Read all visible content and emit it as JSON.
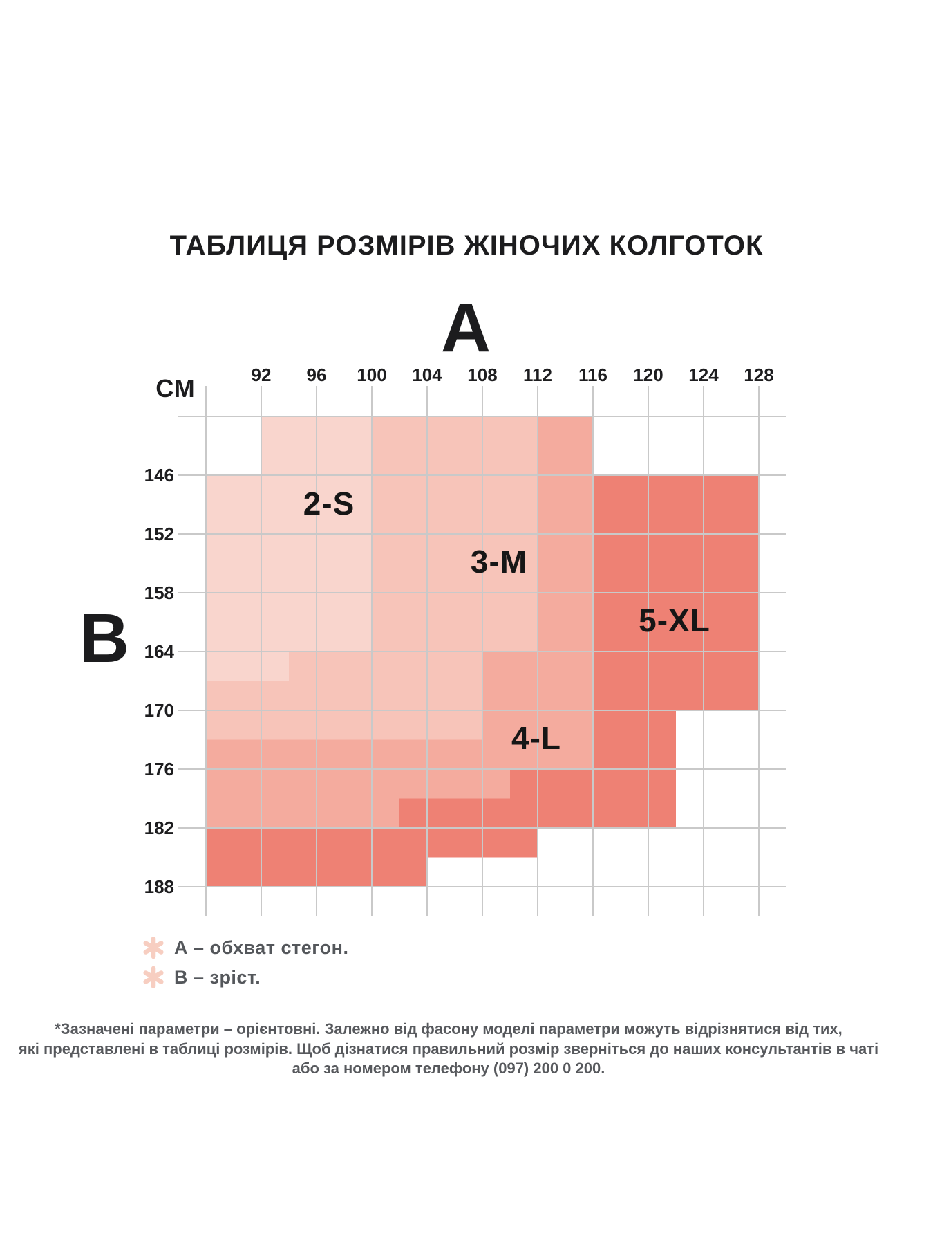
{
  "title": "ТАБЛИЦЯ РОЗМІРІВ ЖІНОЧИХ КОЛГОТОК",
  "axes": {
    "a_symbol": "А",
    "b_symbol": "В",
    "units": "СМ"
  },
  "chart_data": {
    "type": "heatmap",
    "title": "ТАБЛИЦЯ РОЗМІРІВ ЖІНОЧИХ КОЛГОТОК",
    "x_axis": {
      "symbol": "А",
      "meaning": "обхват стегон",
      "units": "СМ",
      "ticks": [
        92,
        96,
        100,
        104,
        108,
        112,
        116,
        120,
        124,
        128
      ],
      "range": [
        88,
        128
      ]
    },
    "y_axis": {
      "symbol": "В",
      "meaning": "зріст",
      "units": "СМ",
      "ticks": [
        146,
        152,
        158,
        164,
        170,
        176,
        182,
        188
      ],
      "range": [
        140,
        188
      ]
    },
    "grid": true,
    "regions": [
      {
        "size": "2-S",
        "color_key": "size_2s",
        "polygon": [
          [
            92,
            140
          ],
          [
            100,
            140
          ],
          [
            100,
            164
          ],
          [
            94,
            164
          ],
          [
            94,
            167
          ],
          [
            88,
            167
          ],
          [
            88,
            146
          ],
          [
            92,
            146
          ]
        ],
        "label_pos": [
          96.9,
          148.9
        ]
      },
      {
        "size": "3-M",
        "color_key": "size_3m",
        "polygon": [
          [
            100,
            140
          ],
          [
            112,
            140
          ],
          [
            112,
            164
          ],
          [
            108,
            164
          ],
          [
            108,
            173
          ],
          [
            88,
            173
          ],
          [
            88,
            167
          ],
          [
            94,
            167
          ],
          [
            94,
            164
          ],
          [
            100,
            164
          ]
        ],
        "label_pos": [
          109.2,
          154.8
        ]
      },
      {
        "size": "4-L",
        "color_key": "size_4l",
        "polygon": [
          [
            112,
            140
          ],
          [
            116,
            140
          ],
          [
            116,
            176
          ],
          [
            110,
            176
          ],
          [
            110,
            179
          ],
          [
            102,
            179
          ],
          [
            102,
            182
          ],
          [
            88,
            182
          ],
          [
            88,
            173
          ],
          [
            108,
            173
          ],
          [
            108,
            164
          ],
          [
            112,
            164
          ]
        ],
        "label_pos": [
          111.9,
          172.8
        ]
      },
      {
        "size": "5-XL",
        "color_key": "size_5xl",
        "polygon": [
          [
            116,
            146
          ],
          [
            128,
            146
          ],
          [
            128,
            170
          ],
          [
            122,
            170
          ],
          [
            122,
            182
          ],
          [
            112,
            182
          ],
          [
            112,
            185
          ],
          [
            104,
            185
          ],
          [
            104,
            188
          ],
          [
            88,
            188
          ],
          [
            88,
            182
          ],
          [
            102,
            182
          ],
          [
            102,
            179
          ],
          [
            110,
            179
          ],
          [
            110,
            176
          ],
          [
            116,
            176
          ]
        ],
        "label_pos": [
          121.9,
          160.8
        ]
      }
    ]
  },
  "legend": [
    {
      "text": "А – обхват стегон."
    },
    {
      "text": "В – зріст."
    }
  ],
  "footnote_lines": [
    "*Зазначені параметри – орієнтовні. Залежно від фасону моделі параметри можуть відрізнятися від тих,",
    "які представлені в таблиці розмірів. Щоб дізнатися правильний розмір зверніться до наших консультантів в чаті",
    "або за номером телефону (097) 200 0 200."
  ],
  "colors": {
    "size_2s": "#f9d5cd",
    "size_3m": "#f7c4b9",
    "size_4l": "#f4ab9e",
    "size_5xl": "#ee8174",
    "grid_line": "#c9c9c9",
    "text_dark": "#1c1c1e",
    "text_gray": "#55585c",
    "asterisk": "#f7cec1",
    "background": "#ffffff"
  }
}
